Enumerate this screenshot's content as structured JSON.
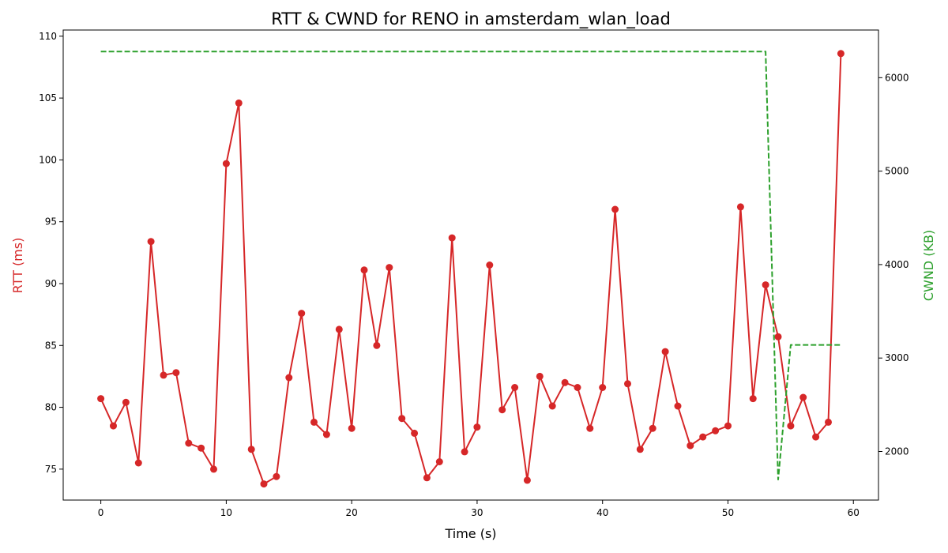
{
  "chart_data": {
    "type": "line",
    "title": "RTT & CWND for RENO in amsterdam_wlan_load",
    "xlabel": "Time (s)",
    "ylabel_left": "RTT (ms)",
    "ylabel_right": "CWND (KB)",
    "xlim": [
      -3,
      62
    ],
    "ylim_left": [
      72.5,
      110.5
    ],
    "ylim_right": [
      1480,
      6510
    ],
    "xticks": [
      0,
      10,
      20,
      30,
      40,
      50,
      60
    ],
    "yticks_left": [
      75,
      80,
      85,
      90,
      95,
      100,
      105,
      110
    ],
    "yticks_right": [
      2000,
      3000,
      4000,
      5000,
      6000
    ],
    "grid": false,
    "colors": {
      "rtt": "#d62728",
      "cwnd": "#2ca02c"
    },
    "series": [
      {
        "axis": "left",
        "style": "solid-markers",
        "x": [
          0,
          1,
          2,
          3,
          4,
          5,
          6,
          7,
          8,
          9,
          10,
          11,
          12,
          13,
          14,
          15,
          16,
          17,
          18,
          19,
          20,
          21,
          22,
          23,
          24,
          25,
          26,
          27,
          28,
          29,
          30,
          31,
          32,
          33,
          34,
          35,
          36,
          37,
          38,
          39,
          40,
          41,
          42,
          43,
          44,
          45,
          46,
          47,
          48,
          49,
          50,
          51,
          52,
          53,
          54,
          55,
          56,
          57,
          58,
          59
        ],
        "values": [
          80.7,
          78.5,
          80.4,
          75.5,
          93.4,
          82.6,
          82.8,
          77.1,
          76.7,
          75.0,
          99.7,
          104.6,
          76.6,
          73.8,
          74.4,
          82.4,
          87.6,
          78.8,
          77.8,
          86.3,
          78.3,
          91.1,
          85.0,
          91.3,
          79.1,
          77.9,
          74.3,
          75.6,
          93.7,
          76.4,
          78.4,
          91.5,
          79.8,
          81.6,
          74.1,
          82.5,
          80.1,
          82.0,
          81.6,
          78.3,
          81.6,
          96.0,
          81.9,
          76.6,
          78.3,
          84.5,
          80.1,
          76.9,
          77.6,
          78.1,
          78.5,
          96.2,
          80.7,
          89.9,
          85.7,
          78.5,
          80.8,
          77.6,
          78.8,
          108.6
        ]
      },
      {
        "axis": "right",
        "style": "dashed",
        "x": [
          0,
          53,
          54,
          55,
          59
        ],
        "values": [
          6280,
          6280,
          1700,
          3140,
          3140
        ]
      }
    ]
  }
}
